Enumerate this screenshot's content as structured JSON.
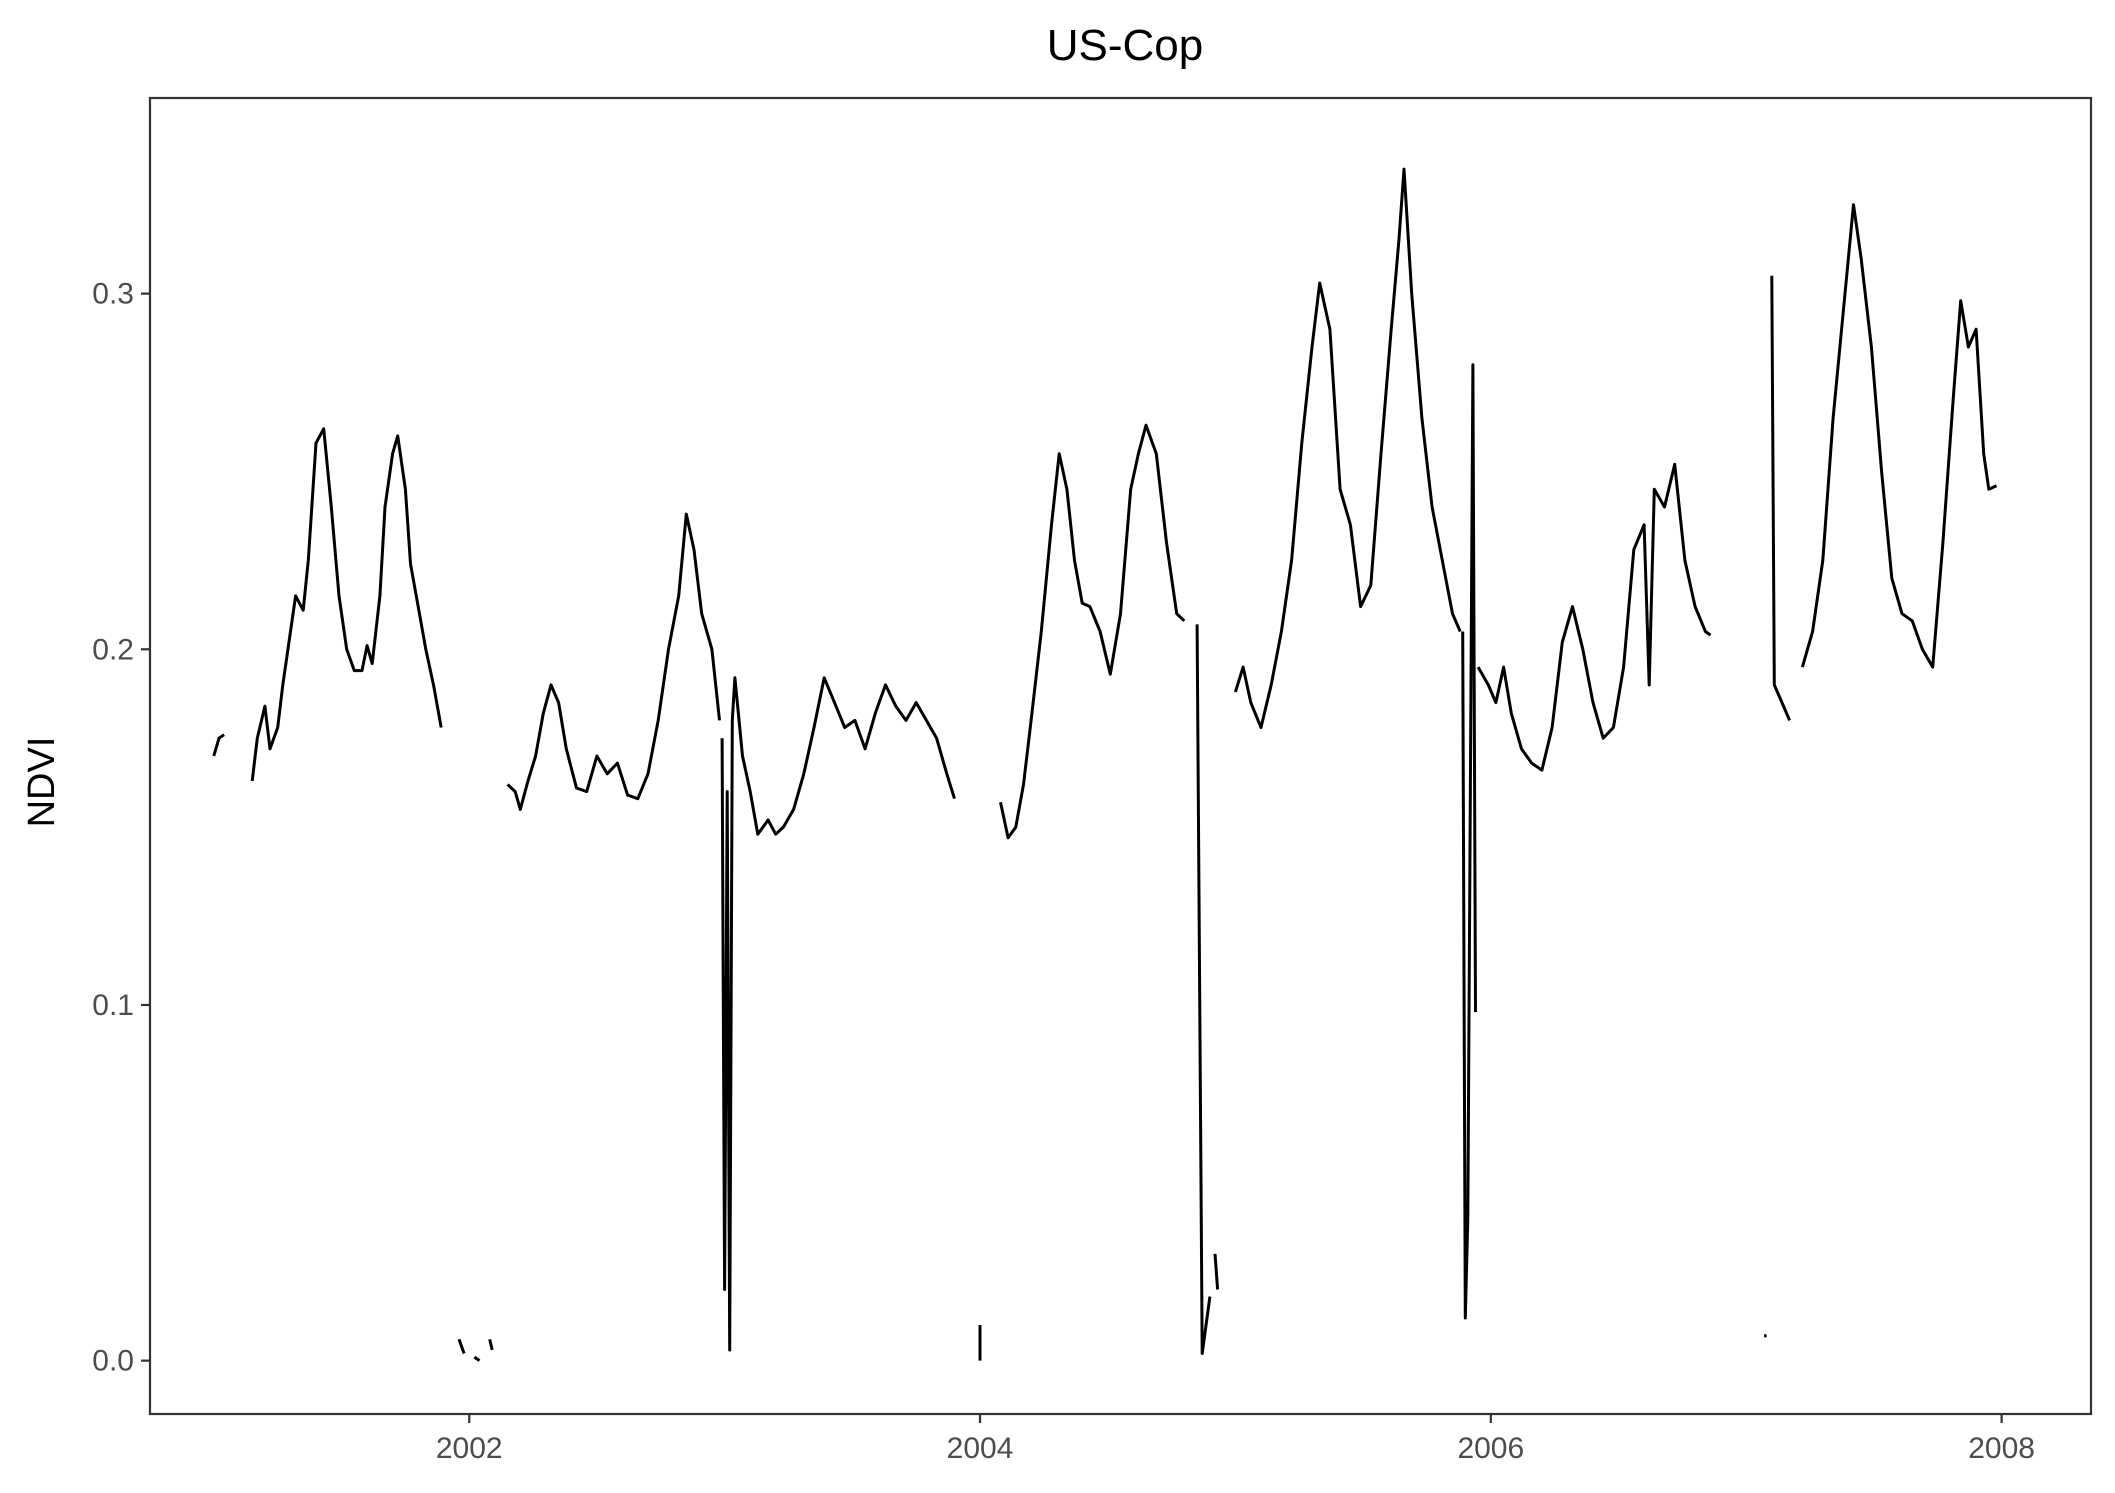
{
  "chart_data": {
    "type": "line",
    "title": "US-Cop",
    "xlabel": "",
    "ylabel": "NDVI",
    "x_ticks": [
      "2002",
      "2004",
      "2006",
      "2008"
    ],
    "y_ticks": [
      "0.0",
      "0.1",
      "0.2",
      "0.3"
    ],
    "xlim": [
      2000.75,
      2008.35
    ],
    "ylim": [
      -0.015,
      0.355
    ],
    "grid": false,
    "legend": "none",
    "line_color": "#000000",
    "series": [
      {
        "segments": [
          [
            [
              2001.0,
              0.17
            ],
            [
              2001.02,
              0.175
            ],
            [
              2001.04,
              0.176
            ]
          ],
          [
            [
              2001.15,
              0.163
            ],
            [
              2001.17,
              0.175
            ],
            [
              2001.2,
              0.184
            ],
            [
              2001.22,
              0.172
            ],
            [
              2001.25,
              0.178
            ],
            [
              2001.27,
              0.19
            ],
            [
              2001.3,
              0.205
            ],
            [
              2001.32,
              0.215
            ],
            [
              2001.35,
              0.211
            ],
            [
              2001.37,
              0.225
            ],
            [
              2001.4,
              0.258
            ],
            [
              2001.43,
              0.262
            ],
            [
              2001.46,
              0.24
            ],
            [
              2001.49,
              0.215
            ],
            [
              2001.52,
              0.2
            ],
            [
              2001.55,
              0.194
            ],
            [
              2001.58,
              0.194
            ],
            [
              2001.6,
              0.201
            ],
            [
              2001.62,
              0.196
            ],
            [
              2001.65,
              0.215
            ],
            [
              2001.67,
              0.24
            ],
            [
              2001.7,
              0.255
            ],
            [
              2001.72,
              0.26
            ],
            [
              2001.75,
              0.245
            ],
            [
              2001.77,
              0.224
            ],
            [
              2001.8,
              0.212
            ],
            [
              2001.83,
              0.2
            ],
            [
              2001.86,
              0.19
            ],
            [
              2001.89,
              0.178
            ]
          ],
          [
            [
              2001.96,
              0.006
            ],
            [
              2001.98,
              0.002
            ]
          ],
          [
            [
              2002.02,
              0.001
            ],
            [
              2002.04,
              0.0
            ]
          ],
          [
            [
              2002.08,
              0.006
            ],
            [
              2002.09,
              0.003
            ]
          ],
          [
            [
              2002.15,
              0.162
            ],
            [
              2002.18,
              0.16
            ],
            [
              2002.2,
              0.155
            ],
            [
              2002.23,
              0.163
            ],
            [
              2002.26,
              0.17
            ],
            [
              2002.29,
              0.182
            ],
            [
              2002.32,
              0.19
            ],
            [
              2002.35,
              0.185
            ],
            [
              2002.38,
              0.172
            ],
            [
              2002.42,
              0.161
            ],
            [
              2002.46,
              0.16
            ],
            [
              2002.5,
              0.17
            ],
            [
              2002.54,
              0.165
            ],
            [
              2002.58,
              0.168
            ],
            [
              2002.62,
              0.159
            ],
            [
              2002.66,
              0.158
            ],
            [
              2002.7,
              0.165
            ],
            [
              2002.74,
              0.18
            ],
            [
              2002.78,
              0.2
            ],
            [
              2002.82,
              0.215
            ],
            [
              2002.85,
              0.238
            ],
            [
              2002.88,
              0.228
            ],
            [
              2002.91,
              0.21
            ],
            [
              2002.95,
              0.2
            ],
            [
              2002.98,
              0.18
            ]
          ],
          [
            [
              2002.99,
              0.175
            ],
            [
              2003.0,
              0.02
            ],
            [
              2003.01,
              0.16
            ],
            [
              2003.02,
              0.003
            ],
            [
              2003.03,
              0.18
            ],
            [
              2003.04,
              0.192
            ],
            [
              2003.07,
              0.17
            ],
            [
              2003.1,
              0.16
            ],
            [
              2003.13,
              0.148
            ],
            [
              2003.17,
              0.152
            ],
            [
              2003.2,
              0.148
            ],
            [
              2003.23,
              0.15
            ],
            [
              2003.27,
              0.155
            ],
            [
              2003.31,
              0.165
            ],
            [
              2003.35,
              0.178
            ],
            [
              2003.39,
              0.192
            ],
            [
              2003.43,
              0.185
            ],
            [
              2003.47,
              0.178
            ],
            [
              2003.51,
              0.18
            ],
            [
              2003.55,
              0.172
            ],
            [
              2003.59,
              0.182
            ],
            [
              2003.63,
              0.19
            ],
            [
              2003.67,
              0.184
            ],
            [
              2003.71,
              0.18
            ],
            [
              2003.75,
              0.185
            ],
            [
              2003.79,
              0.18
            ],
            [
              2003.83,
              0.175
            ],
            [
              2003.87,
              0.165
            ],
            [
              2003.9,
              0.158
            ]
          ],
          [
            [
              2004.0,
              0.0
            ],
            [
              2004.0,
              0.01
            ]
          ],
          [
            [
              2004.08,
              0.157
            ],
            [
              2004.11,
              0.147
            ],
            [
              2004.14,
              0.15
            ],
            [
              2004.17,
              0.162
            ],
            [
              2004.2,
              0.18
            ],
            [
              2004.24,
              0.205
            ],
            [
              2004.28,
              0.235
            ],
            [
              2004.31,
              0.255
            ],
            [
              2004.34,
              0.245
            ],
            [
              2004.37,
              0.225
            ],
            [
              2004.4,
              0.213
            ],
            [
              2004.43,
              0.212
            ],
            [
              2004.47,
              0.205
            ],
            [
              2004.51,
              0.193
            ],
            [
              2004.55,
              0.21
            ],
            [
              2004.59,
              0.245
            ],
            [
              2004.62,
              0.255
            ],
            [
              2004.65,
              0.263
            ],
            [
              2004.69,
              0.255
            ],
            [
              2004.73,
              0.23
            ],
            [
              2004.77,
              0.21
            ],
            [
              2004.8,
              0.208
            ]
          ],
          [
            [
              2004.85,
              0.207
            ],
            [
              2004.87,
              0.002
            ],
            [
              2004.9,
              0.018
            ]
          ],
          [
            [
              2004.92,
              0.03
            ],
            [
              2004.93,
              0.02
            ]
          ],
          [
            [
              2005.0,
              0.188
            ],
            [
              2005.03,
              0.195
            ],
            [
              2005.06,
              0.185
            ],
            [
              2005.1,
              0.178
            ],
            [
              2005.14,
              0.19
            ],
            [
              2005.18,
              0.205
            ],
            [
              2005.22,
              0.225
            ],
            [
              2005.26,
              0.258
            ],
            [
              2005.3,
              0.285
            ],
            [
              2005.33,
              0.303
            ],
            [
              2005.37,
              0.29
            ],
            [
              2005.41,
              0.245
            ],
            [
              2005.45,
              0.235
            ],
            [
              2005.49,
              0.212
            ],
            [
              2005.53,
              0.218
            ],
            [
              2005.57,
              0.255
            ],
            [
              2005.61,
              0.29
            ],
            [
              2005.64,
              0.315
            ],
            [
              2005.66,
              0.335
            ],
            [
              2005.69,
              0.3
            ],
            [
              2005.73,
              0.265
            ],
            [
              2005.77,
              0.24
            ],
            [
              2005.81,
              0.225
            ],
            [
              2005.85,
              0.21
            ],
            [
              2005.88,
              0.205
            ]
          ],
          [
            [
              2005.89,
              0.205
            ],
            [
              2005.9,
              0.012
            ],
            [
              2005.91,
              0.04
            ],
            [
              2005.93,
              0.28
            ],
            [
              2005.94,
              0.098
            ]
          ],
          [
            [
              2005.95,
              0.195
            ],
            [
              2005.99,
              0.19
            ],
            [
              2006.02,
              0.185
            ],
            [
              2006.05,
              0.195
            ],
            [
              2006.08,
              0.182
            ],
            [
              2006.12,
              0.172
            ],
            [
              2006.16,
              0.168
            ],
            [
              2006.2,
              0.166
            ],
            [
              2006.24,
              0.178
            ],
            [
              2006.28,
              0.202
            ],
            [
              2006.32,
              0.212
            ],
            [
              2006.36,
              0.2
            ],
            [
              2006.4,
              0.185
            ],
            [
              2006.44,
              0.175
            ],
            [
              2006.48,
              0.178
            ],
            [
              2006.52,
              0.195
            ],
            [
              2006.56,
              0.228
            ],
            [
              2006.6,
              0.235
            ],
            [
              2006.62,
              0.19
            ],
            [
              2006.64,
              0.245
            ],
            [
              2006.68,
              0.24
            ],
            [
              2006.72,
              0.252
            ],
            [
              2006.76,
              0.225
            ],
            [
              2006.8,
              0.212
            ],
            [
              2006.84,
              0.205
            ],
            [
              2006.86,
              0.204
            ]
          ],
          [
            [
              2007.07,
              0.007
            ],
            [
              2007.08,
              0.007
            ]
          ],
          [
            [
              2007.1,
              0.305
            ],
            [
              2007.11,
              0.19
            ],
            [
              2007.14,
              0.185
            ],
            [
              2007.17,
              0.18
            ]
          ],
          [
            [
              2007.22,
              0.195
            ],
            [
              2007.26,
              0.205
            ],
            [
              2007.3,
              0.225
            ],
            [
              2007.34,
              0.265
            ],
            [
              2007.38,
              0.295
            ],
            [
              2007.42,
              0.325
            ],
            [
              2007.45,
              0.31
            ],
            [
              2007.49,
              0.285
            ],
            [
              2007.53,
              0.25
            ],
            [
              2007.57,
              0.22
            ],
            [
              2007.61,
              0.21
            ],
            [
              2007.65,
              0.208
            ],
            [
              2007.69,
              0.2
            ],
            [
              2007.73,
              0.195
            ],
            [
              2007.77,
              0.23
            ],
            [
              2007.81,
              0.27
            ],
            [
              2007.84,
              0.298
            ],
            [
              2007.87,
              0.285
            ],
            [
              2007.9,
              0.29
            ],
            [
              2007.93,
              0.255
            ],
            [
              2007.95,
              0.245
            ],
            [
              2007.98,
              0.246
            ]
          ]
        ]
      }
    ]
  }
}
